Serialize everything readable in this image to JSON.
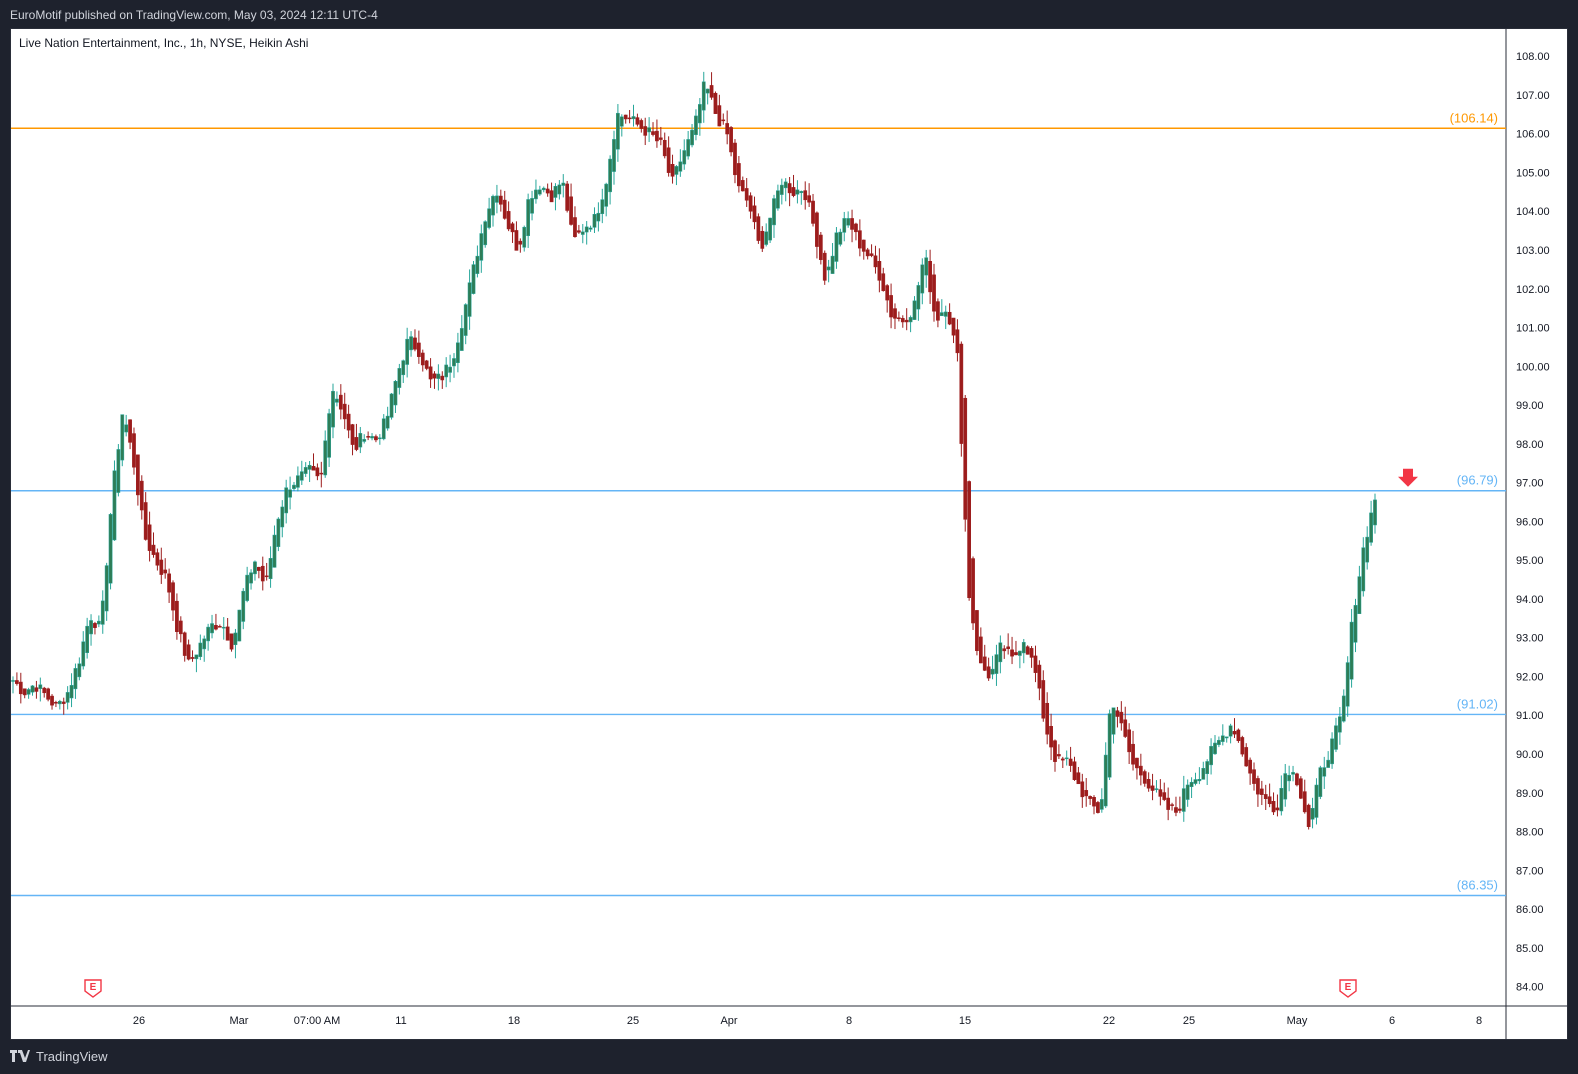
{
  "header": {
    "published": "EuroMotif published on TradingView.com, May 03, 2024 12:11 UTC-4"
  },
  "footer": {
    "brand": "TradingView",
    "logo_icon": "tradingview-logo-icon"
  },
  "colors": {
    "up": "#26a69a",
    "up_body": "#2e7d57",
    "down": "#9c1c1c",
    "resistance": "#ff9800",
    "support": "#64b5f6",
    "arrow": "#f23645"
  },
  "chart_data": {
    "type": "candlestick",
    "title": "Live Nation Entertainment, Inc., 1h, NYSE, Heikin Ashi",
    "ylim": [
      83.5,
      108.7
    ],
    "y_ticks": [
      "108.00",
      "107.00",
      "106.00",
      "105.00",
      "104.00",
      "103.00",
      "102.00",
      "101.00",
      "100.00",
      "99.00",
      "98.00",
      "97.00",
      "96.00",
      "95.00",
      "94.00",
      "93.00",
      "92.00",
      "91.00",
      "90.00",
      "89.00",
      "88.00",
      "87.00",
      "86.00",
      "85.00",
      "84.00"
    ],
    "x_ticks": [
      "26",
      "Mar",
      "07:00 AM",
      "11",
      "18",
      "25",
      "Apr",
      "8",
      "15",
      "22",
      "25",
      "May",
      "6",
      "8"
    ],
    "levels": [
      {
        "value": 106.14,
        "label": "(106.14)",
        "color": "#ff9800"
      },
      {
        "value": 96.79,
        "label": "(96.79)",
        "color": "#64b5f6"
      },
      {
        "value": 91.02,
        "label": "(91.02)",
        "color": "#64b5f6"
      },
      {
        "value": 86.35,
        "label": "(86.35)",
        "color": "#64b5f6"
      }
    ],
    "earnings_markers": [
      {
        "label": "E",
        "date": "Feb 22"
      },
      {
        "label": "E",
        "date": "May 2"
      }
    ],
    "sell_arrow_level": 96.79,
    "price_path": [
      91.9,
      91.6,
      91.8,
      91.5,
      91.2,
      91.6,
      92.4,
      93.6,
      93.2,
      96.6,
      98.9,
      97.5,
      95.6,
      95.0,
      94.5,
      93.2,
      92.3,
      92.8,
      93.3,
      93.4,
      92.8,
      94.2,
      95.0,
      94.3,
      96.0,
      96.9,
      97.1,
      97.3,
      97.0,
      99.5,
      98.9,
      97.8,
      98.3,
      98.1,
      98.6,
      99.8,
      100.7,
      100.4,
      99.6,
      99.7,
      100.2,
      101.3,
      102.6,
      103.9,
      104.6,
      103.7,
      103.0,
      104.4,
      104.7,
      104.4,
      104.8,
      103.2,
      103.6,
      103.8,
      104.8,
      106.5,
      106.4,
      106.2,
      106.0,
      105.7,
      104.7,
      105.5,
      106.1,
      107.3,
      106.5,
      106.0,
      104.6,
      104.2,
      103.0,
      103.9,
      104.8,
      104.5,
      104.6,
      103.5,
      102.2,
      103.4,
      103.8,
      103.2,
      102.8,
      102.3,
      101.3,
      101.2,
      101.5,
      102.9,
      101.2,
      101.6,
      100.2,
      94.2,
      92.3,
      92.0,
      92.8,
      92.4,
      93.0,
      92.2,
      90.7,
      89.8,
      89.8,
      89.2,
      88.7,
      88.5,
      91.5,
      90.6,
      89.7,
      89.4,
      89.0,
      88.6,
      88.5,
      89.3,
      89.5,
      90.0,
      90.4,
      90.8,
      90.0,
      89.2,
      88.8,
      88.6,
      89.7,
      89.3,
      88.1,
      89.5,
      90.2,
      91.0,
      93.6,
      95.4,
      96.6
    ]
  }
}
